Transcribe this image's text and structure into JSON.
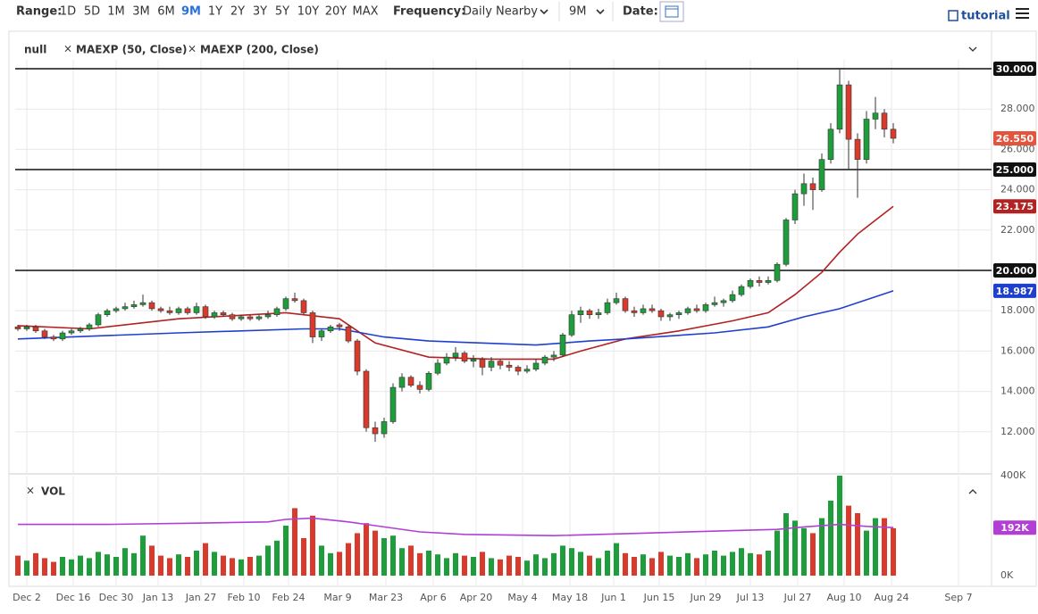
{
  "toolbar": {
    "range_label": "Range:",
    "ranges": [
      "1D",
      "5D",
      "1M",
      "3M",
      "6M",
      "9M",
      "1Y",
      "2Y",
      "3Y",
      "5Y",
      "10Y",
      "20Y",
      "MAX"
    ],
    "selected": 5,
    "frequency_label": "Frequency:",
    "frequency": "Daily Nearby",
    "period": "9M",
    "date_label": "Date:",
    "tutorial": "tutorial"
  },
  "chart_data": [
    {
      "type": "candlestick",
      "name": "null",
      "up_color": "#1e9e3a",
      "down_color": "#d93a2b",
      "candles": [
        [
          17.2,
          17.3,
          17.0,
          17.1
        ],
        [
          17.1,
          17.3,
          17.0,
          17.2
        ],
        [
          17.2,
          17.3,
          16.9,
          17.0
        ],
        [
          17.0,
          17.1,
          16.6,
          16.7
        ],
        [
          16.7,
          16.8,
          16.5,
          16.6
        ],
        [
          16.6,
          17.0,
          16.5,
          16.9
        ],
        [
          16.9,
          17.1,
          16.8,
          17.0
        ],
        [
          17.0,
          17.2,
          16.9,
          17.1
        ],
        [
          17.1,
          17.4,
          17.0,
          17.3
        ],
        [
          17.3,
          17.9,
          17.2,
          17.8
        ],
        [
          17.8,
          18.1,
          17.7,
          18.0
        ],
        [
          18.0,
          18.2,
          17.9,
          18.1
        ],
        [
          18.1,
          18.4,
          18.0,
          18.2
        ],
        [
          18.2,
          18.5,
          18.1,
          18.3
        ],
        [
          18.3,
          18.8,
          18.2,
          18.4
        ],
        [
          18.4,
          18.5,
          18.0,
          18.1
        ],
        [
          18.1,
          18.2,
          17.9,
          18.0
        ],
        [
          18.0,
          18.2,
          17.8,
          17.9
        ],
        [
          17.9,
          18.2,
          17.8,
          18.1
        ],
        [
          18.1,
          18.2,
          17.8,
          17.9
        ],
        [
          17.9,
          18.4,
          17.8,
          18.2
        ],
        [
          18.2,
          18.3,
          17.6,
          17.7
        ],
        [
          17.7,
          18.0,
          17.6,
          17.9
        ],
        [
          17.9,
          18.0,
          17.7,
          17.8
        ],
        [
          17.8,
          17.9,
          17.5,
          17.6
        ],
        [
          17.6,
          17.8,
          17.5,
          17.7
        ],
        [
          17.7,
          17.8,
          17.5,
          17.6
        ],
        [
          17.6,
          17.8,
          17.5,
          17.7
        ],
        [
          17.7,
          18.0,
          17.6,
          17.8
        ],
        [
          17.8,
          18.2,
          17.7,
          18.1
        ],
        [
          18.1,
          18.7,
          18.0,
          18.6
        ],
        [
          18.6,
          18.9,
          18.4,
          18.5
        ],
        [
          18.5,
          18.6,
          17.8,
          17.9
        ],
        [
          17.9,
          18.0,
          16.4,
          16.7
        ],
        [
          16.7,
          17.1,
          16.5,
          17.0
        ],
        [
          17.0,
          17.3,
          16.9,
          17.2
        ],
        [
          17.3,
          17.4,
          17.0,
          17.2
        ],
        [
          17.2,
          17.3,
          16.4,
          16.5
        ],
        [
          16.5,
          16.6,
          14.8,
          15.0
        ],
        [
          15.0,
          15.1,
          12.0,
          12.2
        ],
        [
          12.2,
          12.5,
          11.5,
          11.9
        ],
        [
          11.9,
          12.7,
          11.7,
          12.5
        ],
        [
          12.5,
          14.4,
          12.4,
          14.2
        ],
        [
          14.2,
          14.9,
          14.0,
          14.7
        ],
        [
          14.7,
          14.8,
          14.2,
          14.3
        ],
        [
          14.3,
          14.5,
          13.9,
          14.1
        ],
        [
          14.1,
          15.0,
          14.0,
          14.9
        ],
        [
          14.9,
          15.6,
          14.8,
          15.4
        ],
        [
          15.4,
          15.9,
          15.3,
          15.7
        ],
        [
          15.7,
          16.2,
          15.5,
          15.9
        ],
        [
          15.9,
          16.0,
          15.4,
          15.5
        ],
        [
          15.5,
          15.8,
          15.2,
          15.6
        ],
        [
          15.6,
          15.7,
          14.8,
          15.2
        ],
        [
          15.2,
          15.7,
          15.0,
          15.5
        ],
        [
          15.5,
          15.6,
          15.1,
          15.3
        ],
        [
          15.3,
          15.5,
          15.0,
          15.2
        ],
        [
          15.2,
          15.3,
          14.8,
          15.0
        ],
        [
          15.0,
          15.3,
          14.9,
          15.1
        ],
        [
          15.1,
          15.6,
          15.0,
          15.4
        ],
        [
          15.4,
          15.8,
          15.3,
          15.7
        ],
        [
          15.7,
          16.0,
          15.5,
          15.8
        ],
        [
          15.8,
          16.9,
          15.7,
          16.8
        ],
        [
          16.8,
          18.0,
          16.7,
          17.8
        ],
        [
          17.8,
          18.2,
          17.4,
          18.0
        ],
        [
          18.0,
          18.1,
          17.6,
          17.8
        ],
        [
          17.8,
          18.1,
          17.6,
          17.9
        ],
        [
          17.9,
          18.6,
          17.8,
          18.4
        ],
        [
          18.4,
          18.9,
          18.3,
          18.6
        ],
        [
          18.6,
          18.7,
          17.9,
          18.0
        ],
        [
          18.0,
          18.2,
          17.7,
          17.9
        ],
        [
          17.9,
          18.3,
          17.8,
          18.1
        ],
        [
          18.1,
          18.3,
          17.9,
          18.0
        ],
        [
          18.0,
          18.1,
          17.5,
          17.7
        ],
        [
          17.7,
          17.9,
          17.5,
          17.8
        ],
        [
          17.8,
          18.0,
          17.6,
          17.9
        ],
        [
          17.9,
          18.2,
          17.8,
          18.1
        ],
        [
          18.1,
          18.3,
          17.9,
          18.0
        ],
        [
          18.0,
          18.4,
          17.9,
          18.3
        ],
        [
          18.3,
          18.7,
          18.2,
          18.4
        ],
        [
          18.4,
          18.6,
          18.2,
          18.5
        ],
        [
          18.5,
          19.0,
          18.4,
          18.8
        ],
        [
          18.8,
          19.3,
          18.7,
          19.2
        ],
        [
          19.2,
          19.6,
          19.1,
          19.5
        ],
        [
          19.5,
          19.7,
          19.2,
          19.4
        ],
        [
          19.4,
          19.7,
          19.3,
          19.5
        ],
        [
          19.5,
          20.4,
          19.4,
          20.3
        ],
        [
          20.3,
          22.6,
          20.2,
          22.5
        ],
        [
          22.5,
          24.0,
          22.3,
          23.8
        ],
        [
          23.8,
          24.8,
          23.2,
          24.3
        ],
        [
          24.3,
          24.6,
          23.0,
          24.0
        ],
        [
          24.0,
          25.8,
          23.9,
          25.5
        ],
        [
          25.5,
          27.3,
          25.3,
          27.0
        ],
        [
          27.0,
          30.0,
          26.8,
          29.2
        ],
        [
          29.2,
          29.4,
          25.0,
          26.5
        ],
        [
          26.5,
          26.8,
          23.6,
          25.5
        ],
        [
          25.5,
          27.9,
          25.3,
          27.5
        ],
        [
          27.5,
          28.6,
          27.0,
          27.8
        ],
        [
          27.8,
          28.0,
          26.6,
          27.0
        ],
        [
          27.0,
          27.3,
          26.3,
          26.55
        ]
      ],
      "last_label": "26.550",
      "last_color": "#e5533d",
      "series": [
        {
          "name": "MAEXP (50, Close)",
          "color": "#b22222",
          "x": [
            0,
            8,
            18,
            30,
            36,
            40,
            46,
            53,
            60,
            63,
            68,
            74,
            80,
            84,
            87,
            90,
            92,
            94,
            98
          ],
          "values": [
            17.26,
            17.1,
            17.6,
            17.9,
            17.6,
            16.4,
            15.7,
            15.6,
            15.6,
            16.0,
            16.6,
            17.0,
            17.5,
            17.9,
            18.8,
            19.9,
            20.9,
            21.8,
            23.175
          ],
          "value_label": "23.175"
        },
        {
          "name": "MAEXP (200, Close)",
          "color": "#1f3fcf",
          "x": [
            0,
            18,
            32,
            36,
            41,
            46,
            58,
            64,
            68,
            78,
            84,
            88,
            92,
            98
          ],
          "values": [
            16.6,
            16.9,
            17.1,
            17.1,
            16.7,
            16.5,
            16.3,
            16.5,
            16.6,
            16.9,
            17.2,
            17.7,
            18.1,
            18.987
          ],
          "value_label": "18.987"
        }
      ],
      "hlines": [
        {
          "value": 30,
          "label": "30.000"
        },
        {
          "value": 25,
          "label": "25.000"
        },
        {
          "value": 20,
          "label": "20.000"
        }
      ],
      "ylim": [
        9.91,
        31.77
      ],
      "yticks": [
        {
          "value": 12,
          "label": "12.000"
        },
        {
          "value": 14,
          "label": "14.000"
        },
        {
          "value": 16,
          "label": "16.000"
        },
        {
          "value": 18,
          "label": "18.000"
        },
        {
          "value": 20,
          "label": "20.000"
        },
        {
          "value": 22,
          "label": "22.000"
        },
        {
          "value": 24,
          "label": "24.000"
        },
        {
          "value": 26,
          "label": "26.000"
        },
        {
          "value": 28,
          "label": "28.000"
        }
      ],
      "xlim": [
        -0.3,
        109
      ],
      "xticks": [
        {
          "value": 1,
          "label": "Dec 2"
        },
        {
          "value": 6.2,
          "label": "Dec 16"
        },
        {
          "value": 11,
          "label": "Dec 30"
        },
        {
          "value": 15.7,
          "label": "Jan 13"
        },
        {
          "value": 20.5,
          "label": "Jan 27"
        },
        {
          "value": 25.3,
          "label": "Feb 10"
        },
        {
          "value": 30.3,
          "label": "Feb 24"
        },
        {
          "value": 35.8,
          "label": "Mar 9"
        },
        {
          "value": 41.2,
          "label": "Mar 23"
        },
        {
          "value": 46.5,
          "label": "Apr 6"
        },
        {
          "value": 51.3,
          "label": "Apr 20"
        },
        {
          "value": 56.5,
          "label": "May 4"
        },
        {
          "value": 61.8,
          "label": "May 18"
        },
        {
          "value": 66.7,
          "label": "Jun 1"
        },
        {
          "value": 71.8,
          "label": "Jun 15"
        },
        {
          "value": 77,
          "label": "Jun 29"
        },
        {
          "value": 82,
          "label": "Jul 13"
        },
        {
          "value": 87.3,
          "label": "Jul 27"
        },
        {
          "value": 92.5,
          "label": "Aug 10"
        },
        {
          "value": 97.8,
          "label": "Aug 24"
        },
        {
          "value": 105.3,
          "label": "Sep 7"
        }
      ],
      "grid": true
    },
    {
      "type": "volume",
      "name": "VOL",
      "values": [
        80,
        60,
        90,
        70,
        55,
        75,
        65,
        80,
        70,
        95,
        85,
        75,
        110,
        90,
        160,
        120,
        80,
        70,
        85,
        75,
        100,
        130,
        95,
        80,
        70,
        65,
        75,
        80,
        120,
        140,
        200,
        270,
        150,
        240,
        120,
        90,
        95,
        130,
        170,
        210,
        180,
        150,
        160,
        110,
        120,
        90,
        100,
        85,
        70,
        90,
        80,
        75,
        95,
        70,
        65,
        80,
        75,
        60,
        85,
        70,
        90,
        120,
        110,
        95,
        80,
        70,
        100,
        130,
        90,
        75,
        85,
        70,
        95,
        80,
        75,
        90,
        70,
        85,
        100,
        80,
        95,
        110,
        90,
        85,
        100,
        180,
        250,
        220,
        190,
        170,
        230,
        300,
        400,
        280,
        250,
        180,
        230,
        230,
        190
      ],
      "ylim": [
        0,
        400
      ],
      "yticks": [
        {
          "value": 400,
          "label": "400K"
        },
        {
          "value": 0,
          "label": "0K"
        }
      ],
      "ma": {
        "color": "#b23ed6",
        "x": [
          0,
          10,
          20,
          28,
          30,
          33,
          37,
          40,
          45,
          50,
          60,
          70,
          80,
          85,
          88,
          92,
          95,
          98
        ],
        "values": [
          205,
          205,
          210,
          215,
          225,
          230,
          215,
          200,
          175,
          165,
          160,
          170,
          180,
          185,
          195,
          205,
          197,
          192
        ],
        "value_label": "192K"
      }
    }
  ]
}
